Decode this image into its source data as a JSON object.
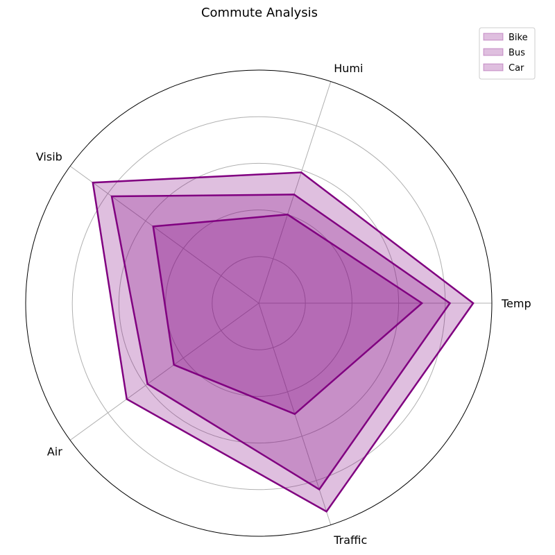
{
  "chart_data": {
    "type": "radar",
    "title": "Commute Analysis",
    "axes": [
      "Temp",
      "Humi",
      "Visib",
      "Air",
      "Traffic"
    ],
    "rmax": 10,
    "rings": [
      2,
      4,
      6,
      8
    ],
    "grid": true,
    "legend_position": "top-right",
    "colors": {
      "fill": "#800080",
      "line": "#800080"
    },
    "series": [
      {
        "name": "Bike",
        "values": [
          9.2,
          5.9,
          8.8,
          7.0,
          9.4
        ]
      },
      {
        "name": "Bus",
        "values": [
          8.2,
          4.9,
          7.8,
          5.9,
          8.4
        ]
      },
      {
        "name": "Car",
        "values": [
          7.0,
          4.0,
          5.6,
          4.5,
          5.0
        ]
      }
    ]
  }
}
